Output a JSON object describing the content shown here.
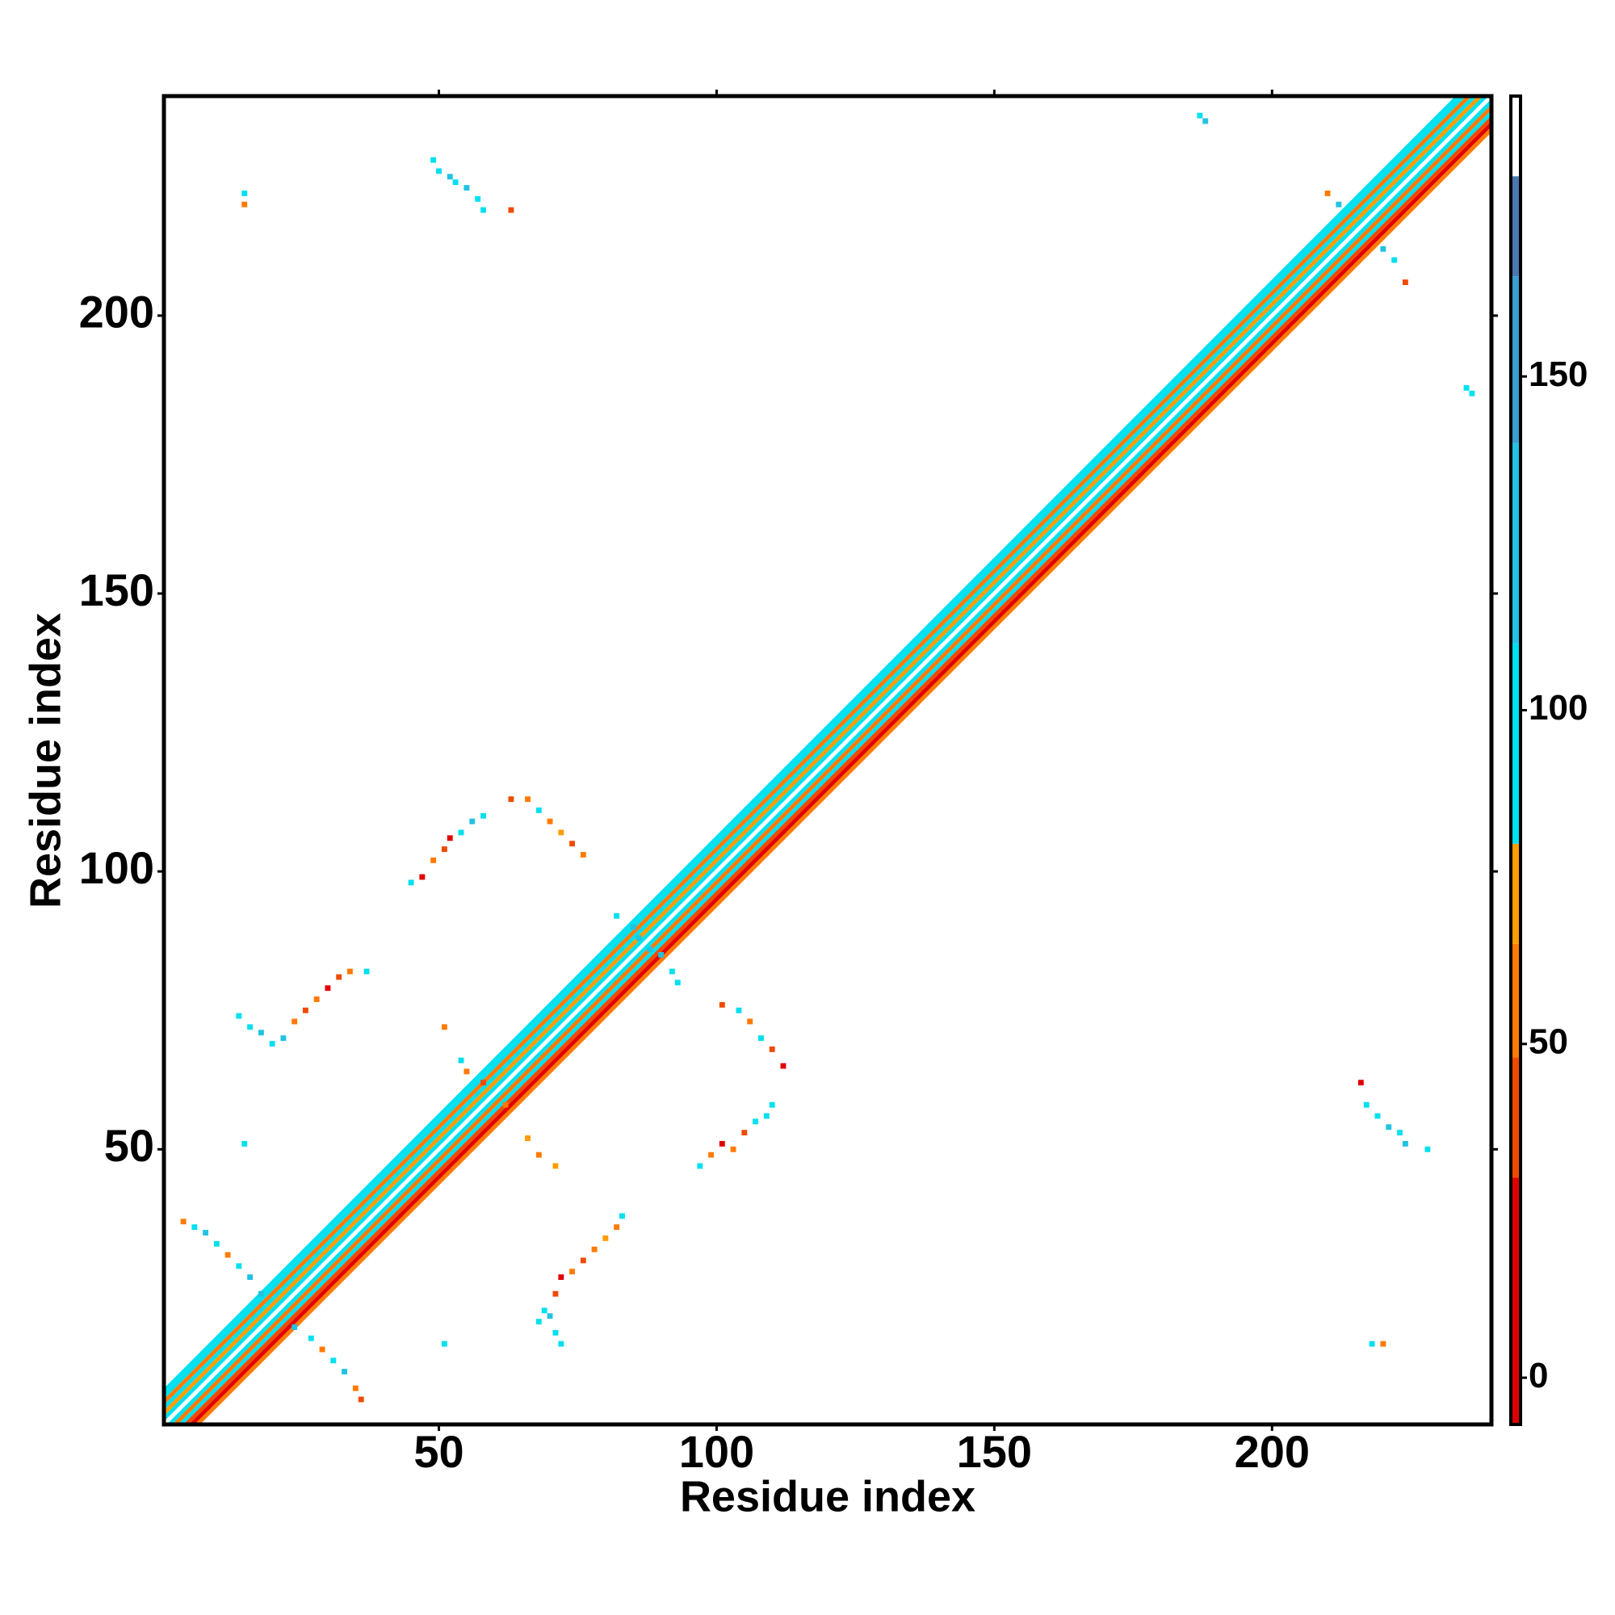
{
  "chart_data": {
    "type": "heatmap",
    "xlabel": "Residue index",
    "ylabel": "Residue index",
    "xlim": [
      0.5,
      239.5
    ],
    "ylim": [
      0.5,
      239.5
    ],
    "xticks": [
      50,
      100,
      150,
      200
    ],
    "yticks": [
      50,
      100,
      150,
      200
    ],
    "diagonal": {
      "offsets": [
        -6,
        -5,
        -4,
        -3,
        -2,
        -1,
        0,
        1,
        2,
        3,
        4,
        5,
        6
      ],
      "values": [
        100,
        95,
        60,
        100,
        70,
        100,
        185,
        100,
        60,
        100,
        40,
        30,
        60
      ]
    },
    "cells": {
      "x": [
        4,
        6,
        8,
        10,
        12,
        14,
        16,
        18,
        24,
        27,
        29,
        31,
        33,
        35,
        36,
        68,
        69,
        70,
        71,
        72,
        74,
        76,
        78,
        80,
        82,
        83,
        72,
        71,
        14,
        16,
        18,
        20,
        22,
        24,
        26,
        28,
        30,
        32,
        34,
        37,
        97,
        99,
        101,
        103,
        105,
        107,
        109,
        110,
        45,
        47,
        49,
        51,
        52,
        54,
        56,
        58,
        63,
        66,
        68,
        70,
        72,
        74,
        76,
        101,
        104,
        106,
        108,
        110,
        112,
        51,
        54,
        55,
        58,
        62,
        66,
        68,
        71,
        49,
        50,
        52,
        53,
        55,
        57,
        58,
        63,
        216,
        217,
        219,
        221,
        223,
        224,
        228,
        15,
        15,
        220,
        218,
        187,
        188,
        235,
        236,
        15,
        51,
        86,
        88,
        85,
        90,
        82,
        92,
        93,
        210,
        212,
        220,
        222,
        224
      ],
      "y": [
        37,
        36,
        35,
        33,
        31,
        29,
        27,
        24,
        18,
        16,
        14,
        12,
        10,
        7,
        5,
        19,
        21,
        20,
        24,
        27,
        28,
        30,
        32,
        34,
        36,
        38,
        15,
        17,
        74,
        72,
        71,
        69,
        70,
        73,
        75,
        77,
        79,
        81,
        82,
        82,
        47,
        49,
        51,
        50,
        53,
        55,
        56,
        58,
        98,
        99,
        102,
        104,
        106,
        107,
        109,
        110,
        113,
        113,
        111,
        109,
        107,
        105,
        103,
        76,
        75,
        73,
        70,
        68,
        65,
        72,
        66,
        64,
        62,
        58,
        52,
        49,
        47,
        228,
        226,
        225,
        224,
        223,
        221,
        219,
        219,
        62,
        58,
        56,
        54,
        53,
        51,
        50,
        222,
        220,
        15,
        15,
        236,
        235,
        187,
        186,
        51,
        15,
        88,
        86,
        90,
        85,
        92,
        82,
        80,
        222,
        220,
        212,
        210,
        206
      ],
      "values": [
        60,
        100,
        120,
        100,
        60,
        100,
        120,
        140,
        140,
        100,
        60,
        100,
        120,
        60,
        40,
        100,
        100,
        140,
        40,
        20,
        60,
        40,
        60,
        70,
        60,
        100,
        100,
        100,
        100,
        100,
        120,
        100,
        120,
        60,
        40,
        60,
        20,
        40,
        60,
        100,
        100,
        60,
        20,
        60,
        40,
        100,
        100,
        100,
        100,
        20,
        60,
        40,
        20,
        100,
        120,
        100,
        40,
        60,
        100,
        60,
        70,
        40,
        60,
        40,
        100,
        60,
        100,
        40,
        30,
        60,
        100,
        60,
        40,
        60,
        70,
        60,
        70,
        100,
        100,
        120,
        100,
        120,
        100,
        100,
        40,
        20,
        100,
        100,
        120,
        100,
        140,
        100,
        100,
        60,
        60,
        100,
        100,
        140,
        100,
        100,
        100,
        100,
        140,
        140,
        120,
        140,
        100,
        100,
        100,
        60,
        140,
        140,
        100,
        40
      ]
    },
    "colorbar": {
      "lim": [
        -7,
        192
      ],
      "ticks": [
        0,
        50,
        100,
        150
      ],
      "bands": [
        {
          "from": -7,
          "to": 30,
          "color": "#e00000"
        },
        {
          "from": 30,
          "to": 48,
          "color": "#f04a00"
        },
        {
          "from": 48,
          "to": 65,
          "color": "#ff7a00"
        },
        {
          "from": 65,
          "to": 80,
          "color": "#ff9c00"
        },
        {
          "from": 80,
          "to": 110,
          "color": "#00e0ef"
        },
        {
          "from": 110,
          "to": 140,
          "color": "#22c2e2"
        },
        {
          "from": 140,
          "to": 165,
          "color": "#38a0d0"
        },
        {
          "from": 165,
          "to": 180,
          "color": "#4a78b0"
        },
        {
          "from": 180,
          "to": 192,
          "color": "#ffffff"
        }
      ]
    }
  }
}
